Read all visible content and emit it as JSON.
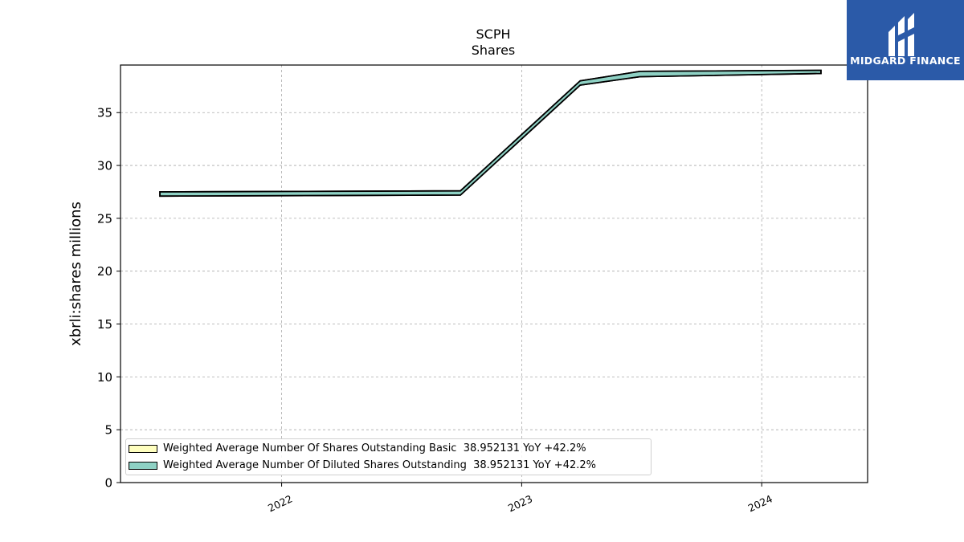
{
  "chart_data": {
    "type": "area",
    "title": "SCPH",
    "subtitle": "Shares",
    "xlabel": "",
    "ylabel": "xbrli:shares millions",
    "xlim": [
      "2021-05-01",
      "2024-06-10"
    ],
    "ylim": [
      0,
      39.5
    ],
    "yticks": [
      0,
      5,
      10,
      15,
      20,
      25,
      30,
      35
    ],
    "xticks": [
      {
        "date": "2022-01-01",
        "label": "2022"
      },
      {
        "date": "2023-01-01",
        "label": "2023"
      },
      {
        "date": "2024-01-01",
        "label": "2024"
      }
    ],
    "grid": true,
    "legend_position": "lower-left",
    "series": [
      {
        "name": "Weighted Average Number Of Shares Outstanding Basic",
        "legend_label": "Weighted Average Number Of Shares Outstanding Basic  38.952131 YoY +42.2%",
        "color": "#ffffbf",
        "x": [
          "2021-06-30",
          "2022-09-30",
          "2023-03-31",
          "2023-06-30",
          "2024-03-31"
        ],
        "low": [
          27.1,
          27.2,
          37.6,
          38.4,
          38.7
        ],
        "high": [
          27.5,
          27.6,
          38.0,
          38.9,
          39.0
        ]
      },
      {
        "name": "Weighted Average Number Of Diluted Shares Outstanding",
        "legend_label": "Weighted Average Number Of Diluted Shares Outstanding  38.952131 YoY +42.2%",
        "color": "#8ed1c4",
        "x": [
          "2021-06-30",
          "2022-09-30",
          "2023-03-31",
          "2023-06-30",
          "2024-03-31"
        ],
        "low": [
          27.1,
          27.2,
          37.6,
          38.4,
          38.7
        ],
        "high": [
          27.5,
          27.6,
          38.0,
          38.9,
          39.0
        ]
      }
    ]
  },
  "logo": {
    "text": "MIDGARD FINANCE",
    "icon": "midgard-monogram-icon",
    "background": "#2b5aa8"
  }
}
